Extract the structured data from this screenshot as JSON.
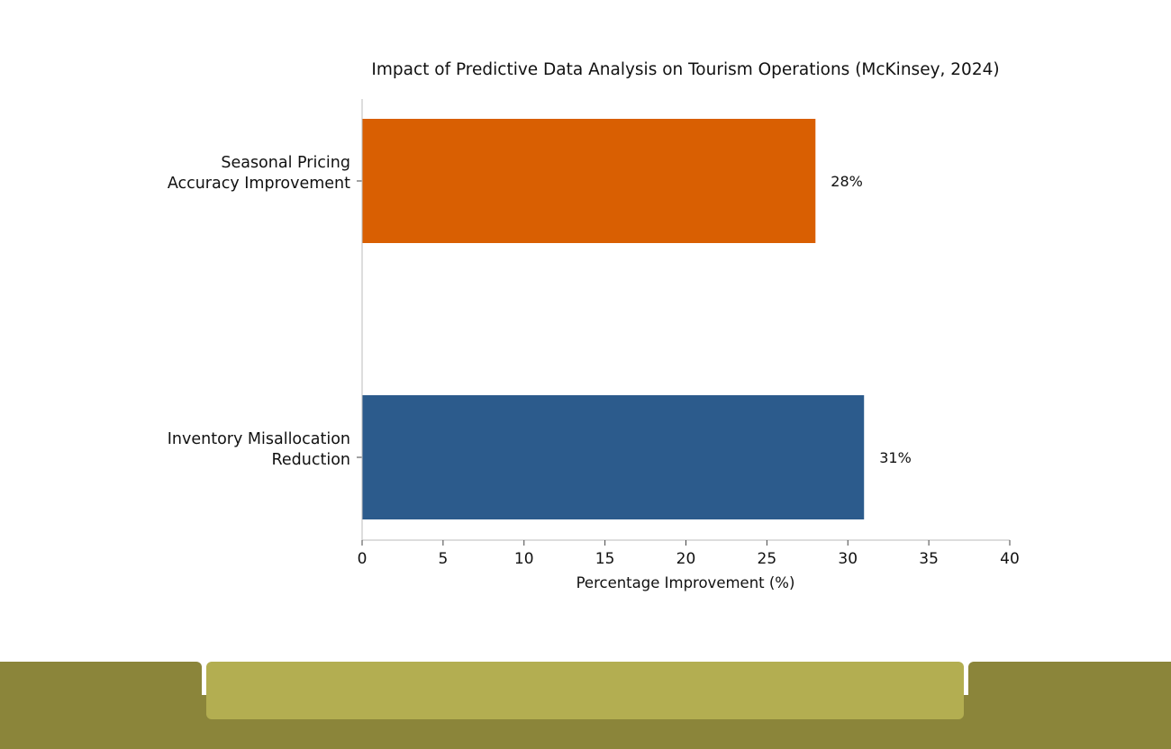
{
  "chart_data": {
    "type": "bar",
    "orientation": "horizontal",
    "title": "Impact of Predictive Data Analysis on Tourism Operations (McKinsey, 2024)",
    "xlabel": "Percentage Improvement (%)",
    "ylabel": "",
    "xlim": [
      0,
      40
    ],
    "xticks": [
      "0",
      "5",
      "10",
      "15",
      "20",
      "25",
      "30",
      "35",
      "40"
    ],
    "categories": [
      [
        "Seasonal Pricing",
        "Accuracy Improvement"
      ],
      [
        "Inventory Misallocation",
        "Reduction"
      ]
    ],
    "values": [
      28,
      31
    ],
    "data_labels": [
      "28%",
      "31%"
    ],
    "colors": [
      "#d95f02",
      "#2c5b8c"
    ],
    "grid": false,
    "legend": "none"
  },
  "footer": {
    "colors": {
      "base": "#8b853a",
      "center": "#b3ae51"
    }
  }
}
